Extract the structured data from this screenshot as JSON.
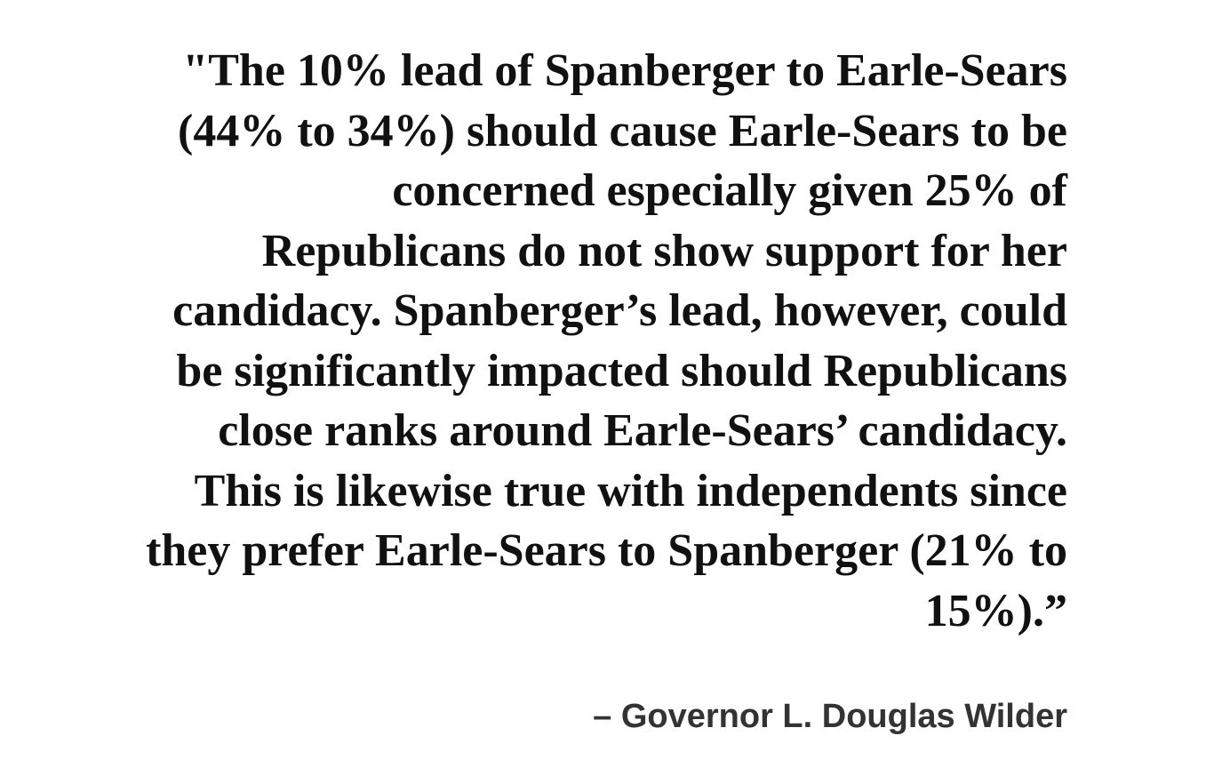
{
  "quote": {
    "lines": [
      "\"The 10% lead of Spanberger to Earle-Sears",
      "(44% to 34%) should cause Earle-Sears to be",
      "concerned especially given 25% of",
      "Republicans do not show support for her",
      "candidacy. Spanberger’s lead, however, could",
      "be significantly impacted should Republicans",
      "close ranks around Earle-Sears’ candidacy.",
      "This is likewise true with independents since",
      "they prefer Earle-Sears to Spanberger (21% to",
      "15%).”"
    ]
  },
  "attribution": "– Governor L. Douglas Wilder"
}
